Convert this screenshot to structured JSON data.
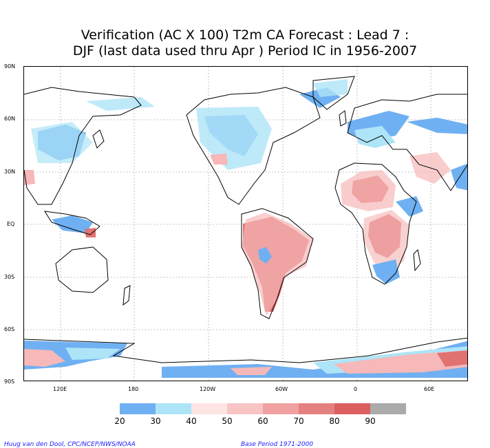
{
  "title": {
    "line1": "Verification (AC X 100) T2m CA Forecast : Lead 7 :",
    "line2": "DJF (last data used thru Apr ) Period IC in 1956-2007"
  },
  "map": {
    "lat_labels": [
      "90N",
      "60N",
      "30N",
      "EQ",
      "30S",
      "60S",
      "90S"
    ],
    "lon_labels": [
      "120E",
      "180",
      "120W",
      "60W",
      "0",
      "60E"
    ],
    "colors": {
      "c20": "#6fb0f2",
      "c30": "#aee4f7",
      "c50": "#ffd9d9",
      "c60": "#f6b8b8",
      "c70": "#ee9494",
      "c80": "#e07272",
      "c90": "#aaaaaa",
      "land_outline": "#000000",
      "grid": "#9a9a9a"
    }
  },
  "colorbar": {
    "labels": [
      "20",
      "30",
      "40",
      "50",
      "60",
      "70",
      "80",
      "90"
    ],
    "colors": [
      "#6fb0f2",
      "#aee4f7",
      "#ffe4e4",
      "#f8c4c4",
      "#f0a0a0",
      "#e58080",
      "#dc6060",
      "#aaaaaa"
    ]
  },
  "footer": {
    "left": "Huug van den Dool, CPC/NCEP/NWS/NOAA",
    "right": "Base Period 1971-2000"
  }
}
